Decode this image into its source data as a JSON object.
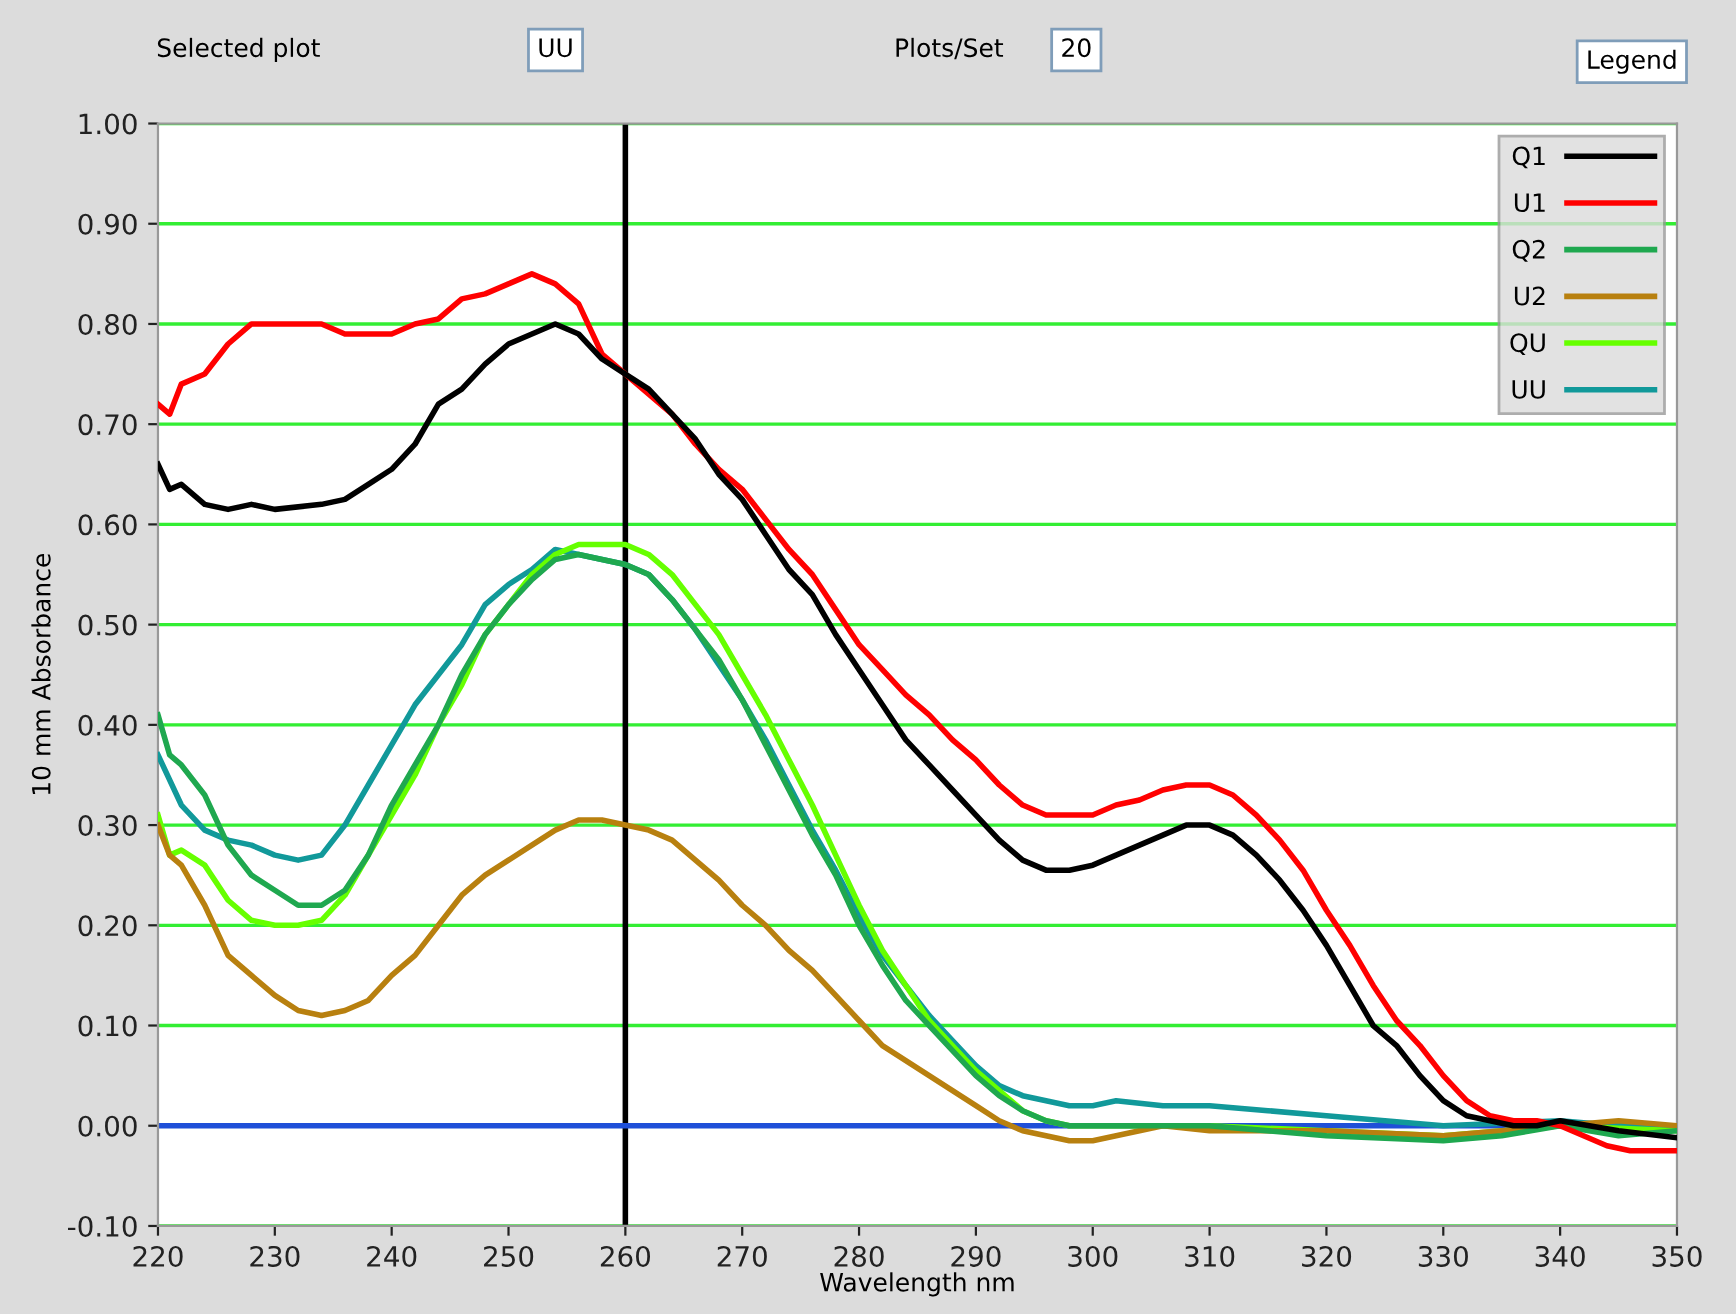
{
  "chart_data": {
    "type": "line",
    "xlabel": "Wavelength nm",
    "ylabel": "10 mm Absorbance",
    "annotations": [
      "Selected plot",
      "UU",
      "Plots/Set",
      "20",
      "Legend"
    ],
    "xlim": [
      220,
      350
    ],
    "xticks": [
      220,
      230,
      240,
      250,
      260,
      270,
      280,
      290,
      300,
      310,
      320,
      330,
      340,
      350
    ],
    "ylim": [
      -0.1,
      1.0
    ],
    "yticks": [
      {
        "value": -0.1,
        "label": "-0.10"
      },
      {
        "value": 0,
        "label": "0.00"
      },
      {
        "value": 0.1,
        "label": "0.10"
      },
      {
        "value": 0.2,
        "label": "0.20"
      },
      {
        "value": 0.3,
        "label": "0.30"
      },
      {
        "value": 0.4,
        "label": "0.40"
      },
      {
        "value": 0.5,
        "label": "0.50"
      },
      {
        "value": 0.6,
        "label": "0.60"
      },
      {
        "value": 0.7,
        "label": "0.70"
      },
      {
        "value": 0.8,
        "label": "0.80"
      },
      {
        "value": 0.9,
        "label": "0.90"
      },
      {
        "value": 1.0,
        "label": "1.00"
      }
    ],
    "grid": "y",
    "legend": "top right",
    "ref_lines": [
      {
        "axis": "x",
        "value": 260,
        "color": "#000000"
      },
      {
        "axis": "y",
        "value": 0,
        "color": "#1f4fd8"
      }
    ],
    "series": [
      {
        "name": "Q1",
        "color": "#000000",
        "x": [
          220,
          221,
          222,
          224,
          226,
          228,
          230,
          234,
          236,
          238,
          240,
          242,
          244,
          246,
          248,
          250,
          252,
          254,
          256,
          258,
          260,
          262,
          264,
          266,
          268,
          270,
          272,
          274,
          276,
          278,
          280,
          282,
          284,
          286,
          288,
          290,
          292,
          294,
          296,
          298,
          300,
          302,
          304,
          306,
          308,
          310,
          312,
          314,
          316,
          318,
          320,
          322,
          324,
          326,
          328,
          330,
          332,
          334,
          336,
          338,
          340,
          345,
          350
        ],
        "values": [
          0.66,
          0.635,
          0.64,
          0.62,
          0.615,
          0.62,
          0.615,
          0.62,
          0.625,
          0.64,
          0.655,
          0.68,
          0.72,
          0.735,
          0.76,
          0.78,
          0.79,
          0.8,
          0.79,
          0.765,
          0.75,
          0.735,
          0.71,
          0.685,
          0.65,
          0.625,
          0.59,
          0.555,
          0.53,
          0.49,
          0.455,
          0.42,
          0.385,
          0.36,
          0.335,
          0.31,
          0.285,
          0.265,
          0.255,
          0.255,
          0.26,
          0.27,
          0.28,
          0.29,
          0.3,
          0.3,
          0.29,
          0.27,
          0.245,
          0.215,
          0.18,
          0.14,
          0.1,
          0.08,
          0.05,
          0.025,
          0.01,
          0.005,
          0.0,
          0.0,
          0.005,
          -0.005,
          -0.012
        ]
      },
      {
        "name": "U1",
        "color": "#ff0000",
        "x": [
          220,
          221,
          222,
          224,
          226,
          228,
          230,
          232,
          234,
          236,
          238,
          240,
          242,
          244,
          246,
          248,
          250,
          252,
          254,
          256,
          258,
          260,
          262,
          264,
          266,
          268,
          270,
          272,
          274,
          276,
          278,
          280,
          282,
          284,
          286,
          288,
          290,
          292,
          294,
          296,
          298,
          300,
          302,
          304,
          306,
          308,
          310,
          312,
          314,
          316,
          318,
          320,
          322,
          324,
          326,
          328,
          330,
          332,
          334,
          336,
          338,
          340,
          342,
          344,
          346,
          350
        ],
        "values": [
          0.72,
          0.71,
          0.74,
          0.75,
          0.78,
          0.8,
          0.8,
          0.8,
          0.8,
          0.79,
          0.79,
          0.79,
          0.8,
          0.805,
          0.825,
          0.83,
          0.84,
          0.85,
          0.84,
          0.82,
          0.77,
          0.75,
          0.73,
          0.71,
          0.68,
          0.655,
          0.635,
          0.605,
          0.575,
          0.55,
          0.515,
          0.48,
          0.455,
          0.43,
          0.41,
          0.385,
          0.365,
          0.34,
          0.32,
          0.31,
          0.31,
          0.31,
          0.32,
          0.325,
          0.335,
          0.34,
          0.34,
          0.33,
          0.31,
          0.285,
          0.255,
          0.215,
          0.18,
          0.14,
          0.105,
          0.08,
          0.05,
          0.025,
          0.01,
          0.005,
          0.005,
          0.0,
          -0.01,
          -0.02,
          -0.025,
          -0.025
        ]
      },
      {
        "name": "Q2",
        "color": "#1fa84f",
        "x": [
          220,
          221,
          222,
          224,
          226,
          228,
          230,
          232,
          234,
          236,
          238,
          240,
          242,
          244,
          246,
          248,
          250,
          252,
          254,
          256,
          258,
          260,
          262,
          264,
          266,
          268,
          270,
          272,
          274,
          276,
          278,
          280,
          282,
          284,
          286,
          288,
          290,
          292,
          294,
          296,
          298,
          300,
          305,
          310,
          320,
          330,
          335,
          340,
          345,
          350
        ],
        "values": [
          0.41,
          0.37,
          0.36,
          0.33,
          0.28,
          0.25,
          0.235,
          0.22,
          0.22,
          0.235,
          0.27,
          0.32,
          0.36,
          0.4,
          0.45,
          0.49,
          0.52,
          0.545,
          0.565,
          0.57,
          0.565,
          0.56,
          0.55,
          0.525,
          0.495,
          0.465,
          0.425,
          0.38,
          0.335,
          0.29,
          0.25,
          0.2,
          0.16,
          0.125,
          0.1,
          0.075,
          0.05,
          0.03,
          0.015,
          0.005,
          0.0,
          0.0,
          0.0,
          0.0,
          -0.01,
          -0.015,
          -0.01,
          0.0,
          -0.01,
          -0.005
        ]
      },
      {
        "name": "U2",
        "color": "#b8800f",
        "x": [
          220,
          221,
          222,
          224,
          226,
          228,
          230,
          232,
          234,
          236,
          238,
          240,
          242,
          244,
          246,
          248,
          250,
          252,
          254,
          256,
          258,
          260,
          262,
          264,
          266,
          268,
          270,
          272,
          274,
          276,
          278,
          280,
          282,
          284,
          286,
          288,
          290,
          292,
          294,
          296,
          298,
          300,
          302,
          306,
          310,
          320,
          330,
          340,
          345,
          350
        ],
        "values": [
          0.3,
          0.27,
          0.26,
          0.22,
          0.17,
          0.15,
          0.13,
          0.115,
          0.11,
          0.115,
          0.125,
          0.15,
          0.17,
          0.2,
          0.23,
          0.25,
          0.265,
          0.28,
          0.295,
          0.305,
          0.305,
          0.3,
          0.295,
          0.285,
          0.265,
          0.245,
          0.22,
          0.2,
          0.175,
          0.155,
          0.13,
          0.105,
          0.08,
          0.065,
          0.05,
          0.035,
          0.02,
          0.005,
          -0.005,
          -0.01,
          -0.015,
          -0.015,
          -0.01,
          0.0,
          -0.005,
          -0.005,
          -0.01,
          0.0,
          0.005,
          0.0
        ]
      },
      {
        "name": "QU",
        "color": "#66ff00",
        "x": [
          220,
          221,
          222,
          224,
          226,
          228,
          230,
          232,
          234,
          236,
          238,
          240,
          242,
          244,
          246,
          248,
          250,
          252,
          254,
          256,
          258,
          260,
          262,
          264,
          266,
          268,
          270,
          272,
          274,
          276,
          278,
          280,
          282,
          284,
          286,
          288,
          290,
          292,
          294,
          296,
          298,
          300,
          310,
          320,
          330,
          340,
          350
        ],
        "values": [
          0.31,
          0.27,
          0.275,
          0.26,
          0.225,
          0.205,
          0.2,
          0.2,
          0.205,
          0.23,
          0.27,
          0.31,
          0.35,
          0.4,
          0.44,
          0.49,
          0.52,
          0.55,
          0.57,
          0.58,
          0.58,
          0.58,
          0.57,
          0.55,
          0.52,
          0.49,
          0.45,
          0.41,
          0.365,
          0.32,
          0.27,
          0.22,
          0.175,
          0.14,
          0.105,
          0.08,
          0.055,
          0.035,
          0.015,
          0.005,
          0.0,
          0.0,
          0.0,
          -0.005,
          -0.01,
          0.0,
          -0.005
        ]
      },
      {
        "name": "UU",
        "color": "#11999a",
        "x": [
          220,
          222,
          224,
          226,
          228,
          230,
          232,
          234,
          236,
          238,
          240,
          242,
          244,
          246,
          248,
          250,
          252,
          254,
          256,
          258,
          260,
          262,
          264,
          266,
          268,
          270,
          272,
          274,
          276,
          278,
          280,
          282,
          284,
          286,
          288,
          290,
          292,
          294,
          296,
          298,
          300,
          302,
          306,
          310,
          315,
          320,
          325,
          330,
          340,
          345,
          350
        ],
        "values": [
          0.37,
          0.32,
          0.295,
          0.285,
          0.28,
          0.27,
          0.265,
          0.27,
          0.3,
          0.34,
          0.38,
          0.42,
          0.45,
          0.48,
          0.52,
          0.54,
          0.555,
          0.575,
          0.57,
          0.565,
          0.56,
          0.55,
          0.525,
          0.495,
          0.46,
          0.425,
          0.385,
          0.34,
          0.295,
          0.255,
          0.21,
          0.17,
          0.14,
          0.11,
          0.085,
          0.06,
          0.04,
          0.03,
          0.025,
          0.02,
          0.02,
          0.025,
          0.02,
          0.02,
          0.015,
          0.01,
          0.005,
          0.0,
          0.005,
          0.0,
          0.0
        ]
      }
    ]
  }
}
